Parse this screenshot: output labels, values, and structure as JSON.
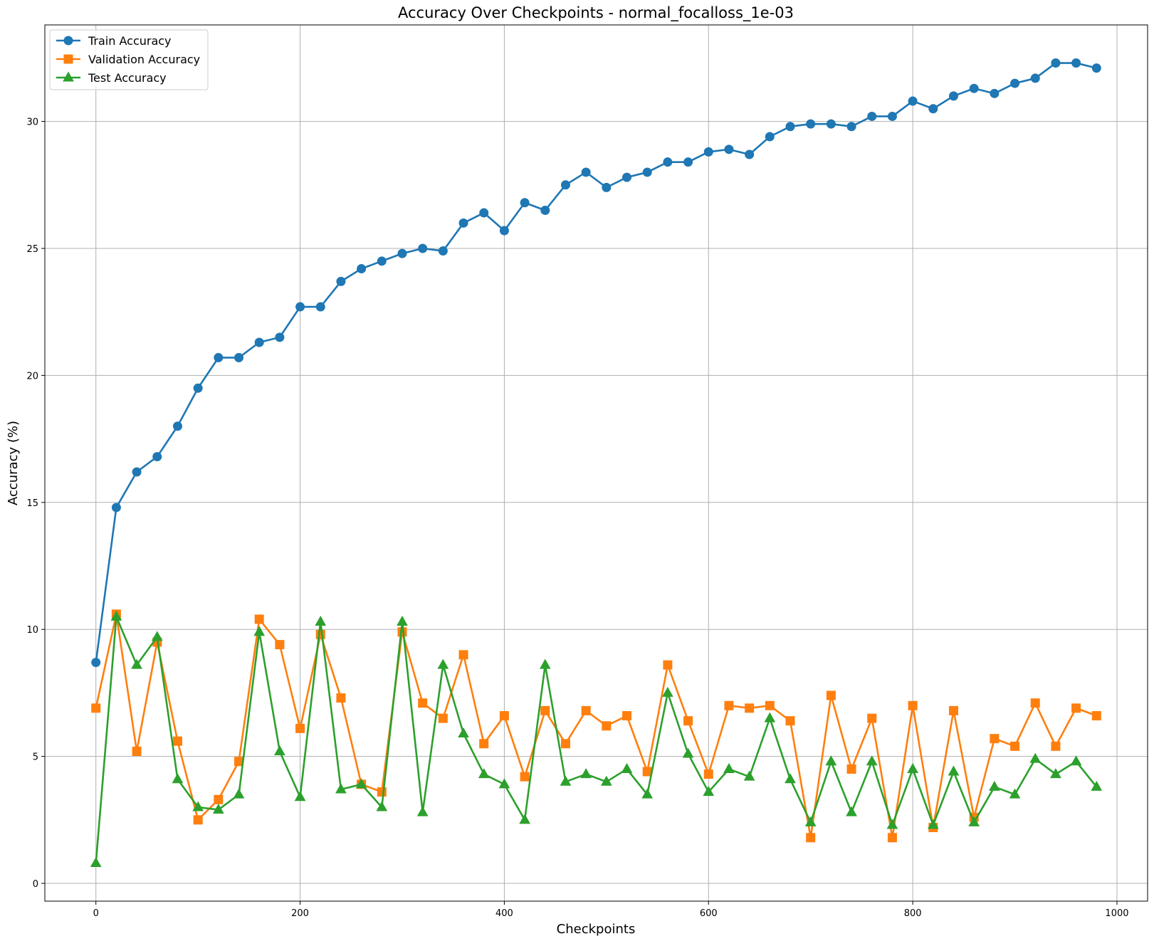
{
  "chart_data": {
    "type": "line",
    "title": "Accuracy Over Checkpoints - normal_focalloss_1e-03",
    "xlabel": "Checkpoints",
    "ylabel": "Accuracy (%)",
    "xlim": [
      -50,
      1030
    ],
    "ylim": [
      -0.7,
      33.8
    ],
    "xticks": [
      0,
      200,
      400,
      600,
      800,
      1000
    ],
    "xtick_labels": [
      "0",
      "200",
      "400",
      "600",
      "800",
      "1000"
    ],
    "yticks": [
      0,
      5,
      10,
      15,
      20,
      25,
      30
    ],
    "ytick_labels": [
      "0",
      "5",
      "10",
      "15",
      "20",
      "25",
      "30"
    ],
    "grid": true,
    "legend_position": "top-left",
    "x": [
      0,
      20,
      40,
      60,
      80,
      100,
      120,
      140,
      160,
      180,
      200,
      220,
      240,
      260,
      280,
      300,
      320,
      340,
      360,
      380,
      400,
      420,
      440,
      460,
      480,
      500,
      520,
      540,
      560,
      580,
      600,
      620,
      640,
      660,
      680,
      700,
      720,
      740,
      760,
      780,
      800,
      820,
      840,
      860,
      880,
      900,
      920,
      940,
      960,
      980
    ],
    "series": [
      {
        "name": "Train Accuracy",
        "color": "#1f77b4",
        "marker": "circle",
        "values": [
          8.7,
          14.8,
          16.2,
          16.8,
          18.0,
          19.5,
          20.7,
          20.7,
          21.3,
          21.5,
          22.7,
          22.7,
          23.7,
          24.2,
          24.5,
          24.8,
          25.0,
          24.9,
          26.0,
          26.4,
          25.7,
          26.8,
          26.5,
          27.5,
          28.0,
          27.4,
          27.8,
          28.0,
          28.4,
          28.4,
          28.8,
          28.9,
          28.7,
          29.4,
          29.8,
          29.9,
          29.9,
          29.8,
          30.2,
          30.2,
          30.8,
          30.5,
          31.0,
          31.3,
          31.1,
          31.5,
          31.7,
          32.3,
          32.3,
          32.1
        ]
      },
      {
        "name": "Validation Accuracy",
        "color": "#ff7f0e",
        "marker": "square",
        "values": [
          6.9,
          10.6,
          5.2,
          9.5,
          5.6,
          2.5,
          3.3,
          4.8,
          10.4,
          9.4,
          6.1,
          9.8,
          7.3,
          3.9,
          3.6,
          9.9,
          7.1,
          6.5,
          9.0,
          5.5,
          6.6,
          4.2,
          6.8,
          5.5,
          6.8,
          6.2,
          6.6,
          4.4,
          8.6,
          6.4,
          4.3,
          7.0,
          6.9,
          7.0,
          6.4,
          1.8,
          7.4,
          4.5,
          6.5,
          1.8,
          7.0,
          2.2,
          6.8,
          2.6,
          5.7,
          5.4,
          7.1,
          5.4,
          6.9,
          6.6
        ]
      },
      {
        "name": "Test Accuracy",
        "color": "#2ca02c",
        "marker": "triangle",
        "values": [
          0.8,
          10.5,
          8.6,
          9.7,
          4.1,
          3.0,
          2.9,
          3.5,
          9.9,
          5.2,
          3.4,
          10.3,
          3.7,
          3.9,
          3.0,
          10.3,
          2.8,
          8.6,
          5.9,
          4.3,
          3.9,
          2.5,
          8.6,
          4.0,
          4.3,
          4.0,
          4.5,
          3.5,
          7.5,
          5.1,
          3.6,
          4.5,
          4.2,
          6.5,
          4.1,
          2.4,
          4.8,
          2.8,
          4.8,
          2.3,
          4.5,
          2.3,
          4.4,
          2.4,
          3.8,
          3.5,
          4.9,
          4.3,
          4.8,
          3.8
        ]
      }
    ]
  }
}
